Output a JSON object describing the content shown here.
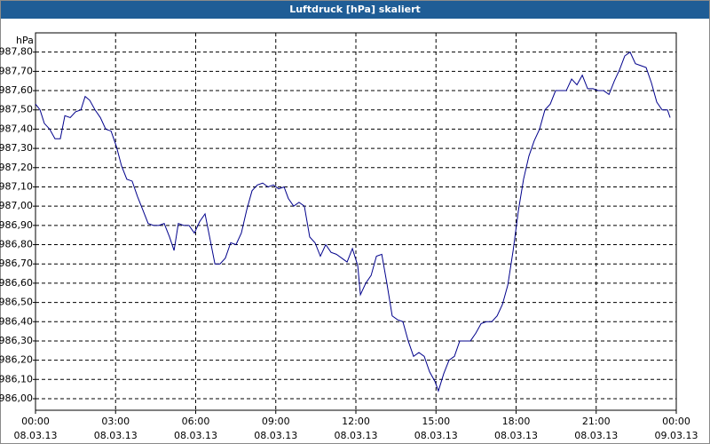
{
  "chart_data": {
    "type": "line",
    "title": "Luftdruck [hPa] skaliert",
    "y_label": "hPa",
    "x": [
      0,
      0.17,
      0.33,
      0.53,
      0.73,
      0.93,
      1.1,
      1.3,
      1.5,
      1.7,
      1.86,
      2.03,
      2.23,
      2.43,
      2.63,
      2.83,
      3.03,
      3.22,
      3.42,
      3.62,
      3.82,
      4.02,
      4.22,
      4.42,
      4.62,
      4.82,
      5.02,
      5.19,
      5.35,
      5.55,
      5.75,
      5.95,
      6.15,
      6.35,
      6.55,
      6.72,
      6.91,
      7.11,
      7.31,
      7.51,
      7.71,
      7.91,
      8.11,
      8.31,
      8.51,
      8.71,
      8.91,
      9.11,
      9.31,
      9.47,
      9.67,
      9.87,
      10.07,
      10.27,
      10.47,
      10.67,
      10.87,
      11.07,
      11.27,
      11.47,
      11.67,
      11.87,
      12.07,
      12.17,
      12.37,
      12.57,
      12.77,
      12.97,
      13.16,
      13.36,
      13.56,
      13.76,
      13.96,
      14.16,
      14.36,
      14.56,
      14.76,
      14.96,
      15.09,
      15.29,
      15.49,
      15.69,
      15.89,
      16.09,
      16.29,
      16.49,
      16.69,
      16.89,
      17.09,
      17.29,
      17.49,
      17.69,
      17.89,
      18.09,
      18.28,
      18.48,
      18.68,
      18.88,
      19.08,
      19.28,
      19.48,
      19.68,
      19.88,
      20.08,
      20.28,
      20.48,
      20.68,
      20.88,
      21.08,
      21.28,
      21.48,
      21.68,
      21.88,
      22.07,
      22.27,
      22.47,
      22.67,
      22.87,
      23.07,
      23.27,
      23.47,
      23.67,
      23.77
    ],
    "series": [
      {
        "name": "Luftdruck",
        "color": "#00008b",
        "values": [
          987.53,
          987.5,
          987.43,
          987.4,
          987.35,
          987.35,
          987.47,
          987.46,
          987.49,
          987.5,
          987.57,
          987.55,
          987.5,
          987.46,
          987.4,
          987.39,
          987.31,
          987.21,
          987.14,
          987.13,
          987.05,
          986.98,
          986.91,
          986.9,
          986.9,
          986.91,
          986.84,
          986.77,
          986.91,
          986.9,
          986.9,
          986.86,
          986.92,
          986.96,
          986.82,
          986.7,
          986.7,
          986.73,
          986.81,
          986.8,
          986.86,
          986.98,
          987.08,
          987.11,
          987.12,
          987.1,
          987.11,
          987.09,
          987.1,
          987.04,
          987.0,
          987.02,
          987.0,
          986.84,
          986.81,
          986.74,
          986.8,
          986.76,
          986.75,
          986.73,
          986.71,
          986.78,
          986.69,
          986.54,
          986.6,
          986.64,
          986.74,
          986.75,
          986.6,
          986.43,
          986.41,
          986.4,
          986.3,
          986.22,
          986.24,
          986.22,
          986.14,
          986.09,
          986.04,
          986.13,
          986.2,
          986.22,
          986.3,
          986.3,
          986.3,
          986.34,
          986.39,
          986.4,
          986.4,
          986.43,
          986.49,
          986.59,
          986.77,
          986.98,
          987.14,
          987.26,
          987.34,
          987.4,
          987.5,
          987.53,
          987.6,
          987.6,
          987.6,
          987.66,
          987.63,
          987.68,
          987.61,
          987.61,
          987.6,
          987.6,
          987.58,
          987.65,
          987.71,
          987.78,
          987.8,
          987.74,
          987.73,
          987.72,
          987.64,
          987.54,
          987.5,
          987.5,
          987.46
        ]
      }
    ],
    "xlim": [
      0,
      24
    ],
    "xticks": [
      {
        "value": 0,
        "label": "00:00\n08.03.13"
      },
      {
        "value": 3,
        "label": "03:00\n08.03.13"
      },
      {
        "value": 6,
        "label": "06:00\n08.03.13"
      },
      {
        "value": 9,
        "label": "09:00\n08.03.13"
      },
      {
        "value": 12,
        "label": "12:00\n08.03.13"
      },
      {
        "value": 15,
        "label": "15:00\n08.03.13"
      },
      {
        "value": 18,
        "label": "18:00\n08.03.13"
      },
      {
        "value": 21,
        "label": "21:00\n08.03.13"
      },
      {
        "value": 24,
        "label": "00:00\n09.03.13"
      }
    ],
    "ylim": [
      985.94,
      987.9
    ],
    "yticks": [
      {
        "value": 986.0,
        "label": "986,00"
      },
      {
        "value": 986.1,
        "label": "986,10"
      },
      {
        "value": 986.2,
        "label": "986,20"
      },
      {
        "value": 986.3,
        "label": "986,30"
      },
      {
        "value": 986.4,
        "label": "986,40"
      },
      {
        "value": 986.5,
        "label": "986,50"
      },
      {
        "value": 986.6,
        "label": "986,60"
      },
      {
        "value": 986.7,
        "label": "986,70"
      },
      {
        "value": 986.8,
        "label": "986,80"
      },
      {
        "value": 986.9,
        "label": "986,90"
      },
      {
        "value": 987.0,
        "label": "987,00"
      },
      {
        "value": 987.1,
        "label": "987,10"
      },
      {
        "value": 987.2,
        "label": "987,20"
      },
      {
        "value": 987.3,
        "label": "987,30"
      },
      {
        "value": 987.4,
        "label": "987,40"
      },
      {
        "value": 987.5,
        "label": "987,50"
      },
      {
        "value": 987.6,
        "label": "987,60"
      },
      {
        "value": 987.7,
        "label": "987,70"
      },
      {
        "value": 987.8,
        "label": "987,80"
      }
    ],
    "grid": true
  }
}
